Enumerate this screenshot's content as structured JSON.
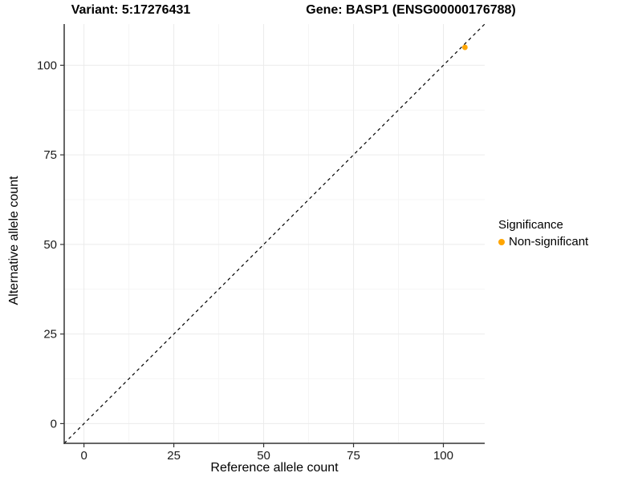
{
  "chart_data": {
    "type": "scatter",
    "title_left": "Variant: 5:17276431",
    "title_right": "Gene: BASP1 (ENSG00000176788)",
    "xlabel": "Reference allele count",
    "ylabel": "Alternative allele count",
    "xlim": [
      -5.5,
      111.5
    ],
    "ylim": [
      -5.5,
      111.5
    ],
    "xticks": [
      0,
      25,
      50,
      75,
      100
    ],
    "yticks": [
      0,
      25,
      50,
      75,
      100
    ],
    "grid": "major and minor gridlines, very light gray on white",
    "reference_line": {
      "equation": "y = x",
      "style": "dashed",
      "color": "#000000",
      "from": [
        -5.5,
        -5.5
      ],
      "to": [
        111.5,
        111.5
      ]
    },
    "series": [
      {
        "name": "Non-significant",
        "color": "#FFA500",
        "points": [
          {
            "x": 106,
            "y": 105
          }
        ]
      }
    ],
    "legend": {
      "title": "Significance",
      "position": "right",
      "entries": [
        {
          "label": "Non-significant",
          "color": "#FFA500"
        }
      ]
    }
  },
  "colors": {
    "background": "#FFFFFF",
    "axis_line": "#333333",
    "tick_mark": "#333333",
    "tick_label": "#1a1a1a",
    "grid_major": "#EBEBEB",
    "grid_minor": "#F4F4F4",
    "point": "#FFA500",
    "text": "#000000"
  }
}
